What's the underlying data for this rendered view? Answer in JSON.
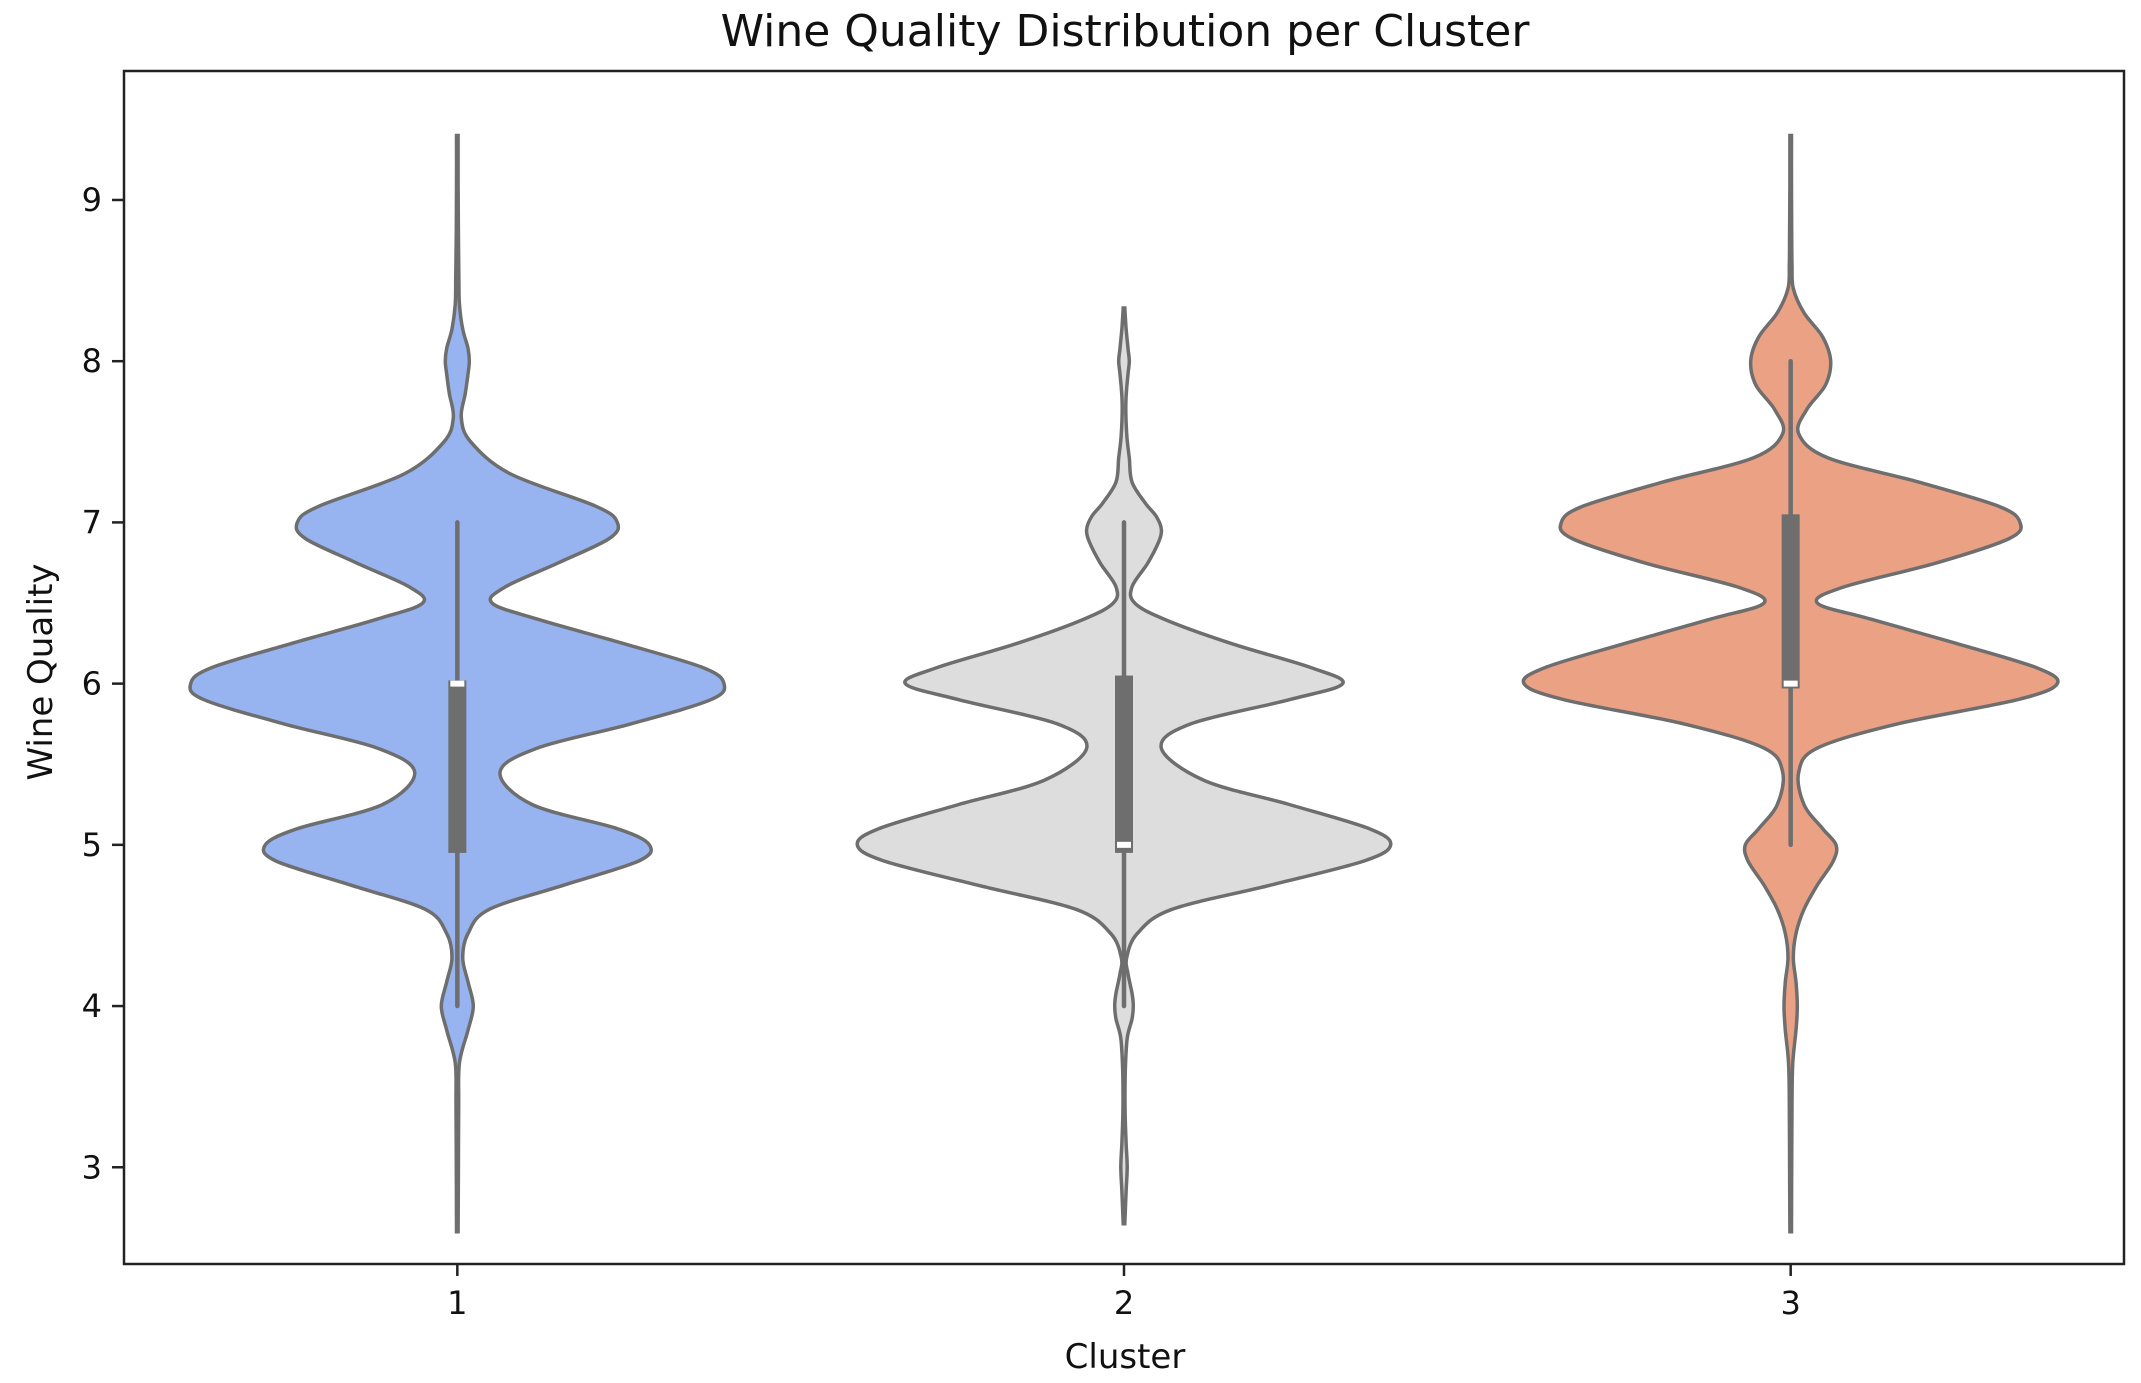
{
  "chart_data": {
    "type": "violin",
    "title": "Wine Quality Distribution per Cluster",
    "xlabel": "Cluster",
    "ylabel": "Wine Quality",
    "categories": [
      "1",
      "2",
      "3"
    ],
    "y_ticks": [
      "3",
      "4",
      "5",
      "6",
      "7",
      "8",
      "9"
    ],
    "ylim": [
      2.4,
      9.8
    ],
    "grid": false,
    "legend": "none",
    "colors": {
      "1": "#97b4f1",
      "2": "#dddddd",
      "3": "#eba184",
      "edge": "#6e6e6e",
      "inner": "#6e6e6e"
    },
    "series": [
      {
        "category": "1",
        "density_y": [
          2.6,
          3.0,
          3.4,
          3.65,
          3.85,
          4.0,
          4.15,
          4.3,
          4.45,
          4.6,
          4.75,
          4.9,
          5.0,
          5.1,
          5.25,
          5.45,
          5.6,
          5.75,
          5.9,
          6.0,
          6.1,
          6.25,
          6.4,
          6.5,
          6.6,
          6.75,
          6.9,
          7.0,
          7.1,
          7.3,
          7.5,
          7.65,
          7.8,
          7.92,
          8.0,
          8.08,
          8.2,
          8.35,
          8.5,
          8.8,
          9.1,
          9.4
        ],
        "density_width": [
          0.003,
          0.004,
          0.005,
          0.008,
          0.04,
          0.06,
          0.04,
          0.02,
          0.04,
          0.12,
          0.4,
          0.68,
          0.72,
          0.6,
          0.28,
          0.16,
          0.3,
          0.65,
          0.95,
          1.0,
          0.92,
          0.62,
          0.3,
          0.13,
          0.18,
          0.38,
          0.57,
          0.6,
          0.52,
          0.2,
          0.05,
          0.015,
          0.03,
          0.04,
          0.045,
          0.04,
          0.02,
          0.008,
          0.006,
          0.004,
          0.003,
          0.003
        ],
        "box": {
          "q1": 4.95,
          "median": 6.0,
          "q3": 6.02,
          "whisker_low": 4.0,
          "whisker_high": 7.0
        }
      },
      {
        "category": "2",
        "density_y": [
          2.65,
          2.85,
          3.0,
          3.15,
          3.35,
          3.6,
          3.8,
          3.92,
          4.0,
          4.08,
          4.2,
          4.3,
          4.45,
          4.6,
          4.75,
          4.9,
          5.0,
          5.1,
          5.25,
          5.4,
          5.6,
          5.75,
          5.9,
          6.0,
          6.1,
          6.25,
          6.4,
          6.5,
          6.6,
          6.75,
          6.88,
          6.96,
          7.04,
          7.12,
          7.25,
          7.4,
          7.55,
          7.75,
          7.92,
          8.0,
          8.08,
          8.2,
          8.33
        ],
        "density_width": [
          0.003,
          0.008,
          0.012,
          0.008,
          0.004,
          0.005,
          0.012,
          0.03,
          0.035,
          0.03,
          0.015,
          0.01,
          0.05,
          0.18,
          0.55,
          0.9,
          1.0,
          0.92,
          0.62,
          0.3,
          0.14,
          0.25,
          0.62,
          0.82,
          0.7,
          0.4,
          0.15,
          0.04,
          0.03,
          0.09,
          0.13,
          0.14,
          0.12,
          0.08,
          0.03,
          0.02,
          0.01,
          0.007,
          0.015,
          0.02,
          0.015,
          0.008,
          0.003
        ],
        "box": {
          "q1": 4.95,
          "median": 5.0,
          "q3": 6.05,
          "whisker_low": 4.0,
          "whisker_high": 7.0
        }
      },
      {
        "category": "3",
        "density_y": [
          2.6,
          3.0,
          3.4,
          3.65,
          3.85,
          4.0,
          4.15,
          4.3,
          4.45,
          4.6,
          4.75,
          4.9,
          5.0,
          5.1,
          5.25,
          5.45,
          5.6,
          5.75,
          5.9,
          6.0,
          6.1,
          6.25,
          6.4,
          6.5,
          6.6,
          6.75,
          6.9,
          7.0,
          7.1,
          7.25,
          7.4,
          7.55,
          7.7,
          7.85,
          8.0,
          8.15,
          8.3,
          8.45,
          8.6,
          8.8,
          9.1,
          9.4
        ],
        "density_width": [
          0.003,
          0.004,
          0.005,
          0.008,
          0.02,
          0.025,
          0.02,
          0.01,
          0.02,
          0.05,
          0.1,
          0.16,
          0.17,
          0.12,
          0.05,
          0.03,
          0.1,
          0.4,
          0.85,
          1.0,
          0.92,
          0.62,
          0.3,
          0.1,
          0.2,
          0.55,
          0.82,
          0.86,
          0.78,
          0.48,
          0.14,
          0.03,
          0.06,
          0.13,
          0.15,
          0.12,
          0.05,
          0.01,
          0.005,
          0.004,
          0.003,
          0.003
        ],
        "box": {
          "q1": 5.97,
          "median": 6.0,
          "q3": 7.05,
          "whisker_low": 5.0,
          "whisker_high": 8.0
        }
      }
    ]
  }
}
